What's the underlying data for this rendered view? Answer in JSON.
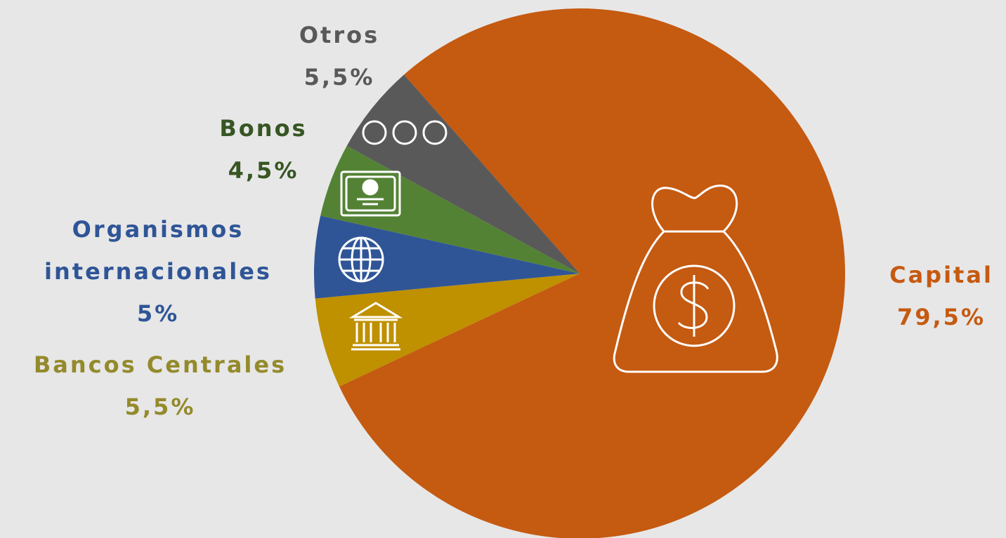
{
  "chart_data": {
    "type": "pie",
    "categories": [
      "Capital",
      "Bancos Centrales",
      "Organismos internacionales",
      "Bonos",
      "Otros"
    ],
    "values": [
      79.5,
      5.5,
      5,
      4.5,
      5.5
    ],
    "value_labels": [
      "79,5%",
      "5,5%",
      "5%",
      "4,5%",
      "5,5%"
    ],
    "colors": [
      "#c55a11",
      "#bf9000",
      "#2f5597",
      "#548235",
      "#595959"
    ],
    "label_colors": [
      "#c55a11",
      "#948a2c",
      "#2f5597",
      "#375623",
      "#595959"
    ]
  }
}
